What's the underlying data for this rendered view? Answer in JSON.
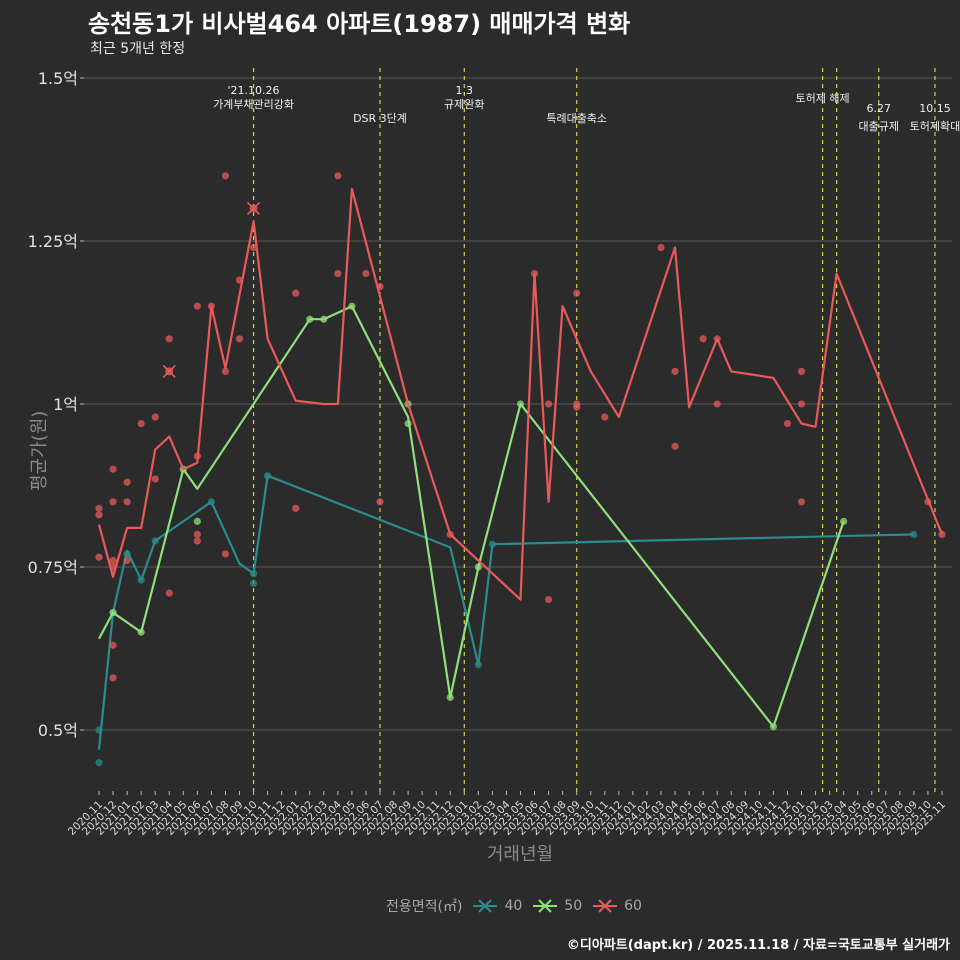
{
  "chart_data": {
    "type": "line",
    "title": "송천동1가 비사벌464 아파트(1987) 매매가격 변화",
    "subtitle": "최근 5개년 한정",
    "xlabel": "거래년월",
    "ylabel": "평균가(원)",
    "ylim": [
      0.4,
      1.5
    ],
    "y_ticks": [
      0.5,
      0.75,
      1.0,
      1.25,
      1.5
    ],
    "y_tick_labels": [
      "0.5억",
      "0.75억",
      "1억",
      "1.25억",
      "1.5억"
    ],
    "x_tick_labels": [
      "2020.11",
      "2020.12",
      "2021.01",
      "2021.02",
      "2021.03",
      "2021.04",
      "2021.05",
      "2021.06",
      "2021.07",
      "2021.08",
      "2021.09",
      "2021.10",
      "2021.11",
      "2021.12",
      "2022.01",
      "2022.02",
      "2022.03",
      "2022.04",
      "2022.05",
      "2022.06",
      "2022.07",
      "2022.08",
      "2022.09",
      "2022.10",
      "2022.11",
      "2022.12",
      "2023.01",
      "2023.02",
      "2023.03",
      "2023.04",
      "2023.05",
      "2023.06",
      "2023.07",
      "2023.08",
      "2023.09",
      "2023.10",
      "2023.11",
      "2023.12",
      "2024.01",
      "2024.02",
      "2024.03",
      "2024.04",
      "2024.05",
      "2024.06",
      "2024.07",
      "2024.08",
      "2024.09",
      "2024.10",
      "2024.11",
      "2024.12",
      "2025.01",
      "2025.02",
      "2025.03",
      "2025.04",
      "2025.05",
      "2025.06",
      "2025.07",
      "2025.08",
      "2025.09",
      "2025.10",
      "2025.11"
    ],
    "legend_title": "전용면적(㎡)",
    "events": [
      {
        "x": 11,
        "label": "'21.10.26",
        "label2": "가계부채관리강화"
      },
      {
        "x": 20,
        "label": "DSR 3단계",
        "label2": ""
      },
      {
        "x": 26,
        "label": "1.3",
        "label2": "규제완화"
      },
      {
        "x": 34,
        "label": "특례대출축소",
        "label2": ""
      },
      {
        "x": 51.5,
        "label": "토허제 해제",
        "label2": ""
      },
      {
        "x": 52.5,
        "label": "",
        "label2": ""
      },
      {
        "x": 55.5,
        "label": "6.27",
        "label2": "대출규제"
      },
      {
        "x": 59.5,
        "label": "10.15",
        "label2": "토허제확대"
      }
    ],
    "series": [
      {
        "name": "40",
        "color": "#2a8c8c",
        "line": [
          [
            0,
            0.47
          ],
          [
            1,
            0.68
          ],
          [
            2,
            0.775
          ],
          [
            3,
            0.73
          ],
          [
            4,
            0.79
          ],
          [
            8,
            0.85
          ],
          [
            10,
            0.755
          ],
          [
            11,
            0.74
          ],
          [
            12,
            0.89
          ],
          [
            25,
            0.78
          ],
          [
            27,
            0.6
          ],
          [
            28,
            0.785
          ],
          [
            58,
            0.8
          ]
        ],
        "points": [
          [
            0,
            0.45
          ],
          [
            0,
            0.5
          ],
          [
            1,
            0.68
          ],
          [
            2,
            0.77
          ],
          [
            3,
            0.73
          ],
          [
            4,
            0.79
          ],
          [
            8,
            0.85
          ],
          [
            11,
            0.74
          ],
          [
            11,
            0.725
          ],
          [
            12,
            0.89
          ],
          [
            27,
            0.6
          ],
          [
            28,
            0.785
          ],
          [
            58,
            0.8
          ]
        ]
      },
      {
        "name": "50",
        "color": "#8fe07a",
        "line": [
          [
            0,
            0.64
          ],
          [
            1,
            0.68
          ],
          [
            3,
            0.65
          ],
          [
            6,
            0.9
          ],
          [
            7,
            0.87
          ],
          [
            15,
            1.13
          ],
          [
            16,
            1.13
          ],
          [
            18,
            1.15
          ],
          [
            22,
            0.98
          ],
          [
            25,
            0.55
          ],
          [
            27,
            0.75
          ],
          [
            30,
            1.0
          ],
          [
            48,
            0.505
          ],
          [
            53,
            0.82
          ]
        ],
        "points": [
          [
            1,
            0.68
          ],
          [
            3,
            0.65
          ],
          [
            6,
            0.9
          ],
          [
            7,
            0.82
          ],
          [
            15,
            1.13
          ],
          [
            16,
            1.13
          ],
          [
            18,
            1.15
          ],
          [
            22,
            1.0
          ],
          [
            22,
            0.97
          ],
          [
            25,
            0.55
          ],
          [
            27,
            0.75
          ],
          [
            30,
            1.0
          ],
          [
            48,
            0.505
          ],
          [
            53,
            0.82
          ]
        ]
      },
      {
        "name": "60",
        "color": "#e85a5a",
        "line": [
          [
            0,
            0.815
          ],
          [
            1,
            0.735
          ],
          [
            2,
            0.81
          ],
          [
            3,
            0.81
          ],
          [
            4,
            0.93
          ],
          [
            5,
            0.95
          ],
          [
            6,
            0.9
          ],
          [
            7,
            0.91
          ],
          [
            8,
            1.15
          ],
          [
            9,
            1.055
          ],
          [
            11,
            1.28
          ],
          [
            12,
            1.1
          ],
          [
            14,
            1.005
          ],
          [
            16,
            1.0
          ],
          [
            17,
            1.0
          ],
          [
            18,
            1.33
          ],
          [
            22,
            1.0
          ],
          [
            25,
            0.8
          ],
          [
            30,
            0.7
          ],
          [
            31,
            1.2
          ],
          [
            32,
            0.85
          ],
          [
            33,
            1.15
          ],
          [
            35,
            1.05
          ],
          [
            37,
            0.98
          ],
          [
            41,
            1.24
          ],
          [
            42,
            0.995
          ],
          [
            44,
            1.1
          ],
          [
            45,
            1.05
          ],
          [
            48,
            1.04
          ],
          [
            50,
            0.97
          ],
          [
            51,
            0.965
          ],
          [
            52.5,
            1.2
          ],
          [
            60,
            0.8
          ]
        ],
        "points": [
          [
            0,
            0.84
          ],
          [
            0,
            0.83
          ],
          [
            0,
            0.765
          ],
          [
            1,
            0.9
          ],
          [
            1,
            0.85
          ],
          [
            1,
            0.76
          ],
          [
            1,
            0.75
          ],
          [
            1,
            0.63
          ],
          [
            1,
            0.58
          ],
          [
            2,
            0.88
          ],
          [
            2,
            0.85
          ],
          [
            2,
            0.76
          ],
          [
            3,
            0.97
          ],
          [
            4,
            0.98
          ],
          [
            4,
            0.885
          ],
          [
            5,
            1.1
          ],
          [
            5,
            0.71
          ],
          [
            7,
            1.15
          ],
          [
            7,
            0.92
          ],
          [
            7,
            0.8
          ],
          [
            7,
            0.79
          ],
          [
            8,
            1.15
          ],
          [
            9,
            1.35
          ],
          [
            9,
            1.05
          ],
          [
            9,
            0.77
          ],
          [
            10,
            1.19
          ],
          [
            10,
            1.1
          ],
          [
            11,
            1.24
          ],
          [
            14,
            1.17
          ],
          [
            14,
            0.84
          ],
          [
            17,
            1.35
          ],
          [
            17,
            1.2
          ],
          [
            19,
            1.2
          ],
          [
            20,
            1.18
          ],
          [
            20,
            0.85
          ],
          [
            25,
            0.8
          ],
          [
            31,
            1.2
          ],
          [
            32,
            1.0
          ],
          [
            32,
            0.7
          ],
          [
            34,
            1.17
          ],
          [
            34,
            1.0
          ],
          [
            34,
            0.995
          ],
          [
            36,
            0.98
          ],
          [
            40,
            1.24
          ],
          [
            41,
            1.05
          ],
          [
            41,
            0.935
          ],
          [
            43,
            1.1
          ],
          [
            44,
            1.1
          ],
          [
            44,
            1.0
          ],
          [
            49,
            0.97
          ],
          [
            50,
            1.05
          ],
          [
            50,
            1.0
          ],
          [
            50,
            0.85
          ],
          [
            59,
            0.85
          ],
          [
            60,
            0.8
          ]
        ],
        "crosses": [
          [
            5,
            1.05
          ],
          [
            11,
            1.3
          ]
        ]
      }
    ]
  },
  "caption": "©디아파트(dapt.kr) / 2025.11.18 / 자료=국토교통부 실거래가"
}
